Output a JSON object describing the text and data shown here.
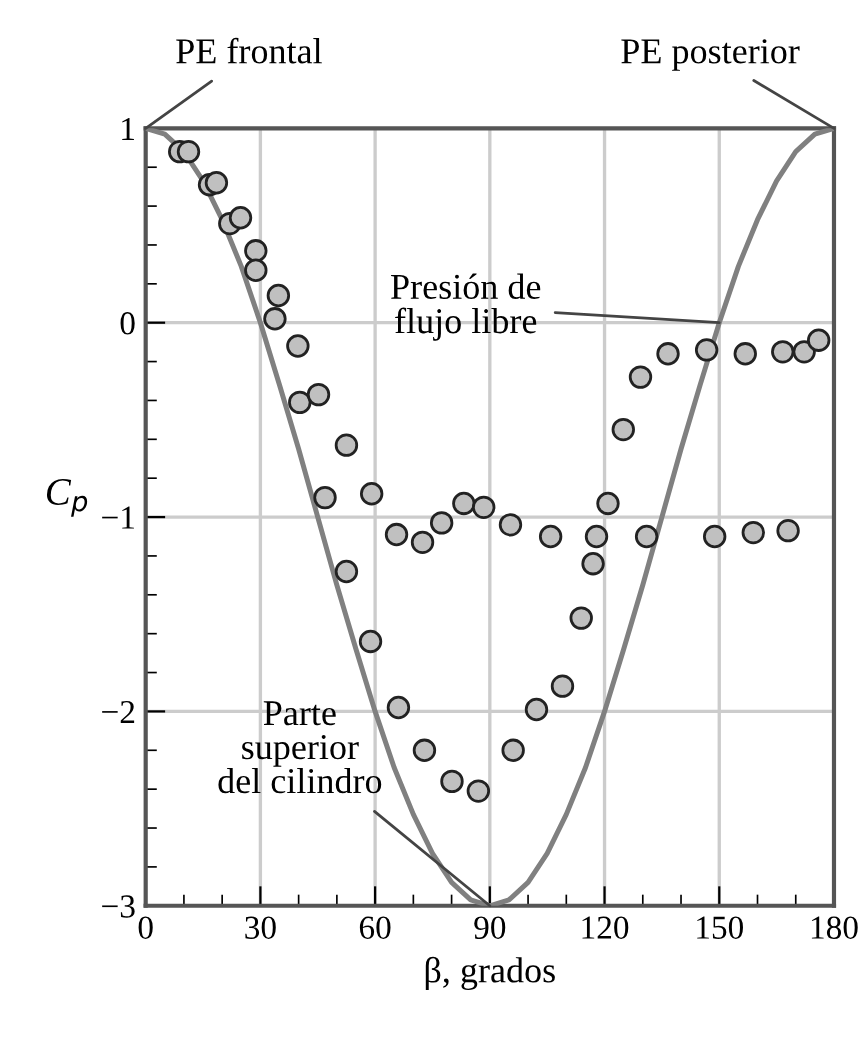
{
  "chart_data": {
    "type": "scatter",
    "xlabel": "β, grados",
    "ylabel": "C$_{p}$",
    "xlim": [
      0,
      180
    ],
    "ylim": [
      -3,
      1
    ],
    "xticks": [
      0,
      30,
      60,
      90,
      120,
      150,
      180
    ],
    "yticks": [
      -3,
      -2,
      -1,
      0,
      1
    ],
    "grid": true,
    "series": [
      {
        "color": "#c0c0c0",
        "marker": "circle",
        "x": [
          8.9,
          11.2,
          16.7,
          18.5,
          22,
          24.8,
          28.8,
          28.8,
          34.7,
          33.8,
          39.8,
          40.3,
          45.2,
          52.5,
          46.9,
          59.1,
          65.6,
          72.4,
          77.4,
          83.2,
          88.4,
          52.5,
          58.8,
          66.1,
          72.9,
          80.1,
          87.0,
          96.1,
          102.2,
          109,
          113.9,
          117,
          117.9,
          120.9,
          105.9,
          95.4,
          131,
          148.8,
          158.9,
          168,
          124.9,
          129.4,
          136.6,
          146.7,
          156.8,
          166.6,
          172.2,
          176
        ],
        "values": [
          0.88,
          0.88,
          0.71,
          0.72,
          0.51,
          0.54,
          0.37,
          0.27,
          0.14,
          0.02,
          -0.12,
          -0.41,
          -0.37,
          -0.63,
          -0.9,
          -0.88,
          -1.09,
          -1.13,
          -1.03,
          -0.93,
          -0.95,
          -1.28,
          -1.64,
          -1.98,
          -2.2,
          -2.36,
          -2.41,
          -2.2,
          -1.99,
          -1.87,
          -1.52,
          -1.24,
          -1.1,
          -0.93,
          -1.1,
          -1.04,
          -1.1,
          -1.1,
          -1.08,
          -1.07,
          -0.55,
          -0.28,
          -0.16,
          -0.14,
          -0.16,
          -0.15,
          -0.15,
          -0.09
        ]
      },
      {
        "type": "line",
        "color": "#808080",
        "marker": "none",
        "line_style": "solid",
        "x": [
          0,
          5,
          10,
          15,
          20,
          25,
          30,
          35,
          40,
          45,
          50,
          55,
          60,
          65,
          70,
          75,
          80,
          85,
          90,
          95,
          100,
          105,
          110,
          115,
          120,
          125,
          130,
          135,
          140,
          145,
          150,
          155,
          160,
          165,
          170,
          175,
          180
        ],
        "values": [
          1,
          0.97,
          0.88,
          0.73,
          0.53,
          0.29,
          0,
          -0.32,
          -0.65,
          -1,
          -1.35,
          -1.68,
          -2,
          -2.29,
          -2.53,
          -2.73,
          -2.88,
          -2.97,
          -3,
          -2.97,
          -2.88,
          -2.73,
          -2.53,
          -2.29,
          -2,
          -1.68,
          -1.35,
          -1,
          -0.65,
          -0.32,
          0,
          0.29,
          0.53,
          0.73,
          0.88,
          0.97,
          1
        ]
      }
    ],
    "annotations": [
      {
        "text": "PE frontal",
        "x": 0,
        "y": 1
      },
      {
        "text": "PE posterior",
        "x": 180,
        "y": 1
      },
      {
        "text": "Presión de\nflujo libre",
        "x": 150,
        "y": 0
      },
      {
        "text": "Parte\nsuperior\ndel cilindro",
        "x": 90,
        "y": -3
      }
    ]
  }
}
